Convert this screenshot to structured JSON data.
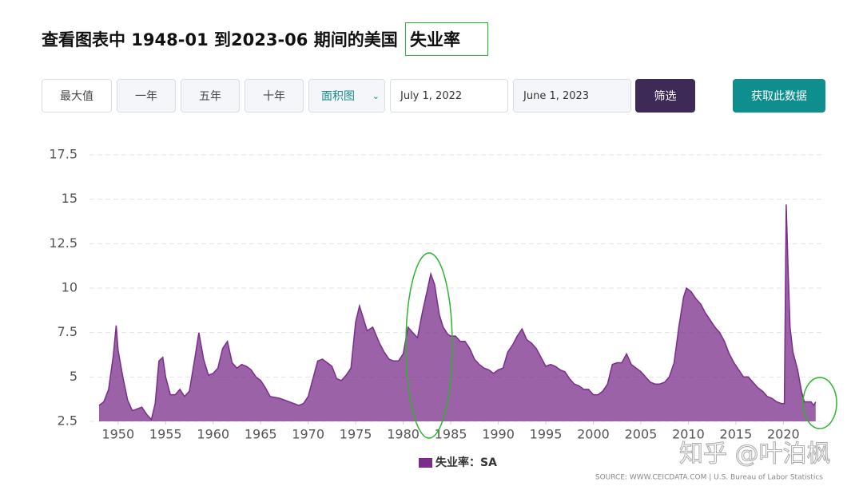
{
  "header": {
    "title_prefix": "查看图表中 1948-01 到2023-06 期间的美国",
    "title_highlight": "失业率"
  },
  "controls": {
    "buttons": [
      "最大值",
      "一年",
      "五年",
      "十年"
    ],
    "chart_type": "面积图",
    "start_date": "July 1, 2022",
    "end_date": "June 1, 2023",
    "filter": "筛选",
    "get_data": "获取此数据"
  },
  "chart_data": {
    "type": "area",
    "x": [
      1948.0,
      1948.5,
      1949.0,
      1949.5,
      1949.8,
      1950.0,
      1950.5,
      1951.0,
      1951.5,
      1952.0,
      1952.5,
      1953.0,
      1953.5,
      1953.9,
      1954.3,
      1954.7,
      1955.0,
      1955.5,
      1956.0,
      1956.5,
      1957.0,
      1957.5,
      1958.0,
      1958.5,
      1959.0,
      1959.5,
      1960.0,
      1960.5,
      1961.0,
      1961.5,
      1962.0,
      1962.5,
      1963.0,
      1963.5,
      1964.0,
      1964.5,
      1965.0,
      1965.5,
      1966.0,
      1967.0,
      1968.0,
      1969.0,
      1969.5,
      1970.0,
      1970.5,
      1971.0,
      1971.5,
      1972.0,
      1972.5,
      1973.0,
      1973.5,
      1974.0,
      1974.5,
      1975.0,
      1975.4,
      1975.8,
      1976.2,
      1976.8,
      1977.5,
      1978.0,
      1978.5,
      1979.0,
      1979.5,
      1980.0,
      1980.5,
      1981.0,
      1981.5,
      1982.0,
      1982.5,
      1982.9,
      1983.3,
      1983.8,
      1984.2,
      1984.7,
      1985.0,
      1985.5,
      1986.0,
      1986.5,
      1987.0,
      1987.5,
      1988.0,
      1988.5,
      1989.0,
      1989.5,
      1990.0,
      1990.5,
      1991.0,
      1991.5,
      1992.0,
      1992.5,
      1993.0,
      1993.5,
      1994.0,
      1994.5,
      1995.0,
      1995.5,
      1996.0,
      1996.5,
      1997.0,
      1997.5,
      1998.0,
      1998.5,
      1999.0,
      1999.5,
      2000.0,
      2000.5,
      2001.0,
      2001.5,
      2002.0,
      2002.5,
      2003.0,
      2003.5,
      2004.0,
      2004.5,
      2005.0,
      2005.5,
      2006.0,
      2006.5,
      2007.0,
      2007.5,
      2008.0,
      2008.5,
      2009.0,
      2009.5,
      2009.8,
      2010.3,
      2010.8,
      2011.3,
      2011.8,
      2012.3,
      2012.8,
      2013.3,
      2013.8,
      2014.3,
      2014.8,
      2015.3,
      2015.8,
      2016.3,
      2016.8,
      2017.3,
      2017.8,
      2018.3,
      2018.8,
      2019.3,
      2019.8,
      2020.1,
      2020.3,
      2020.5,
      2020.7,
      2021.0,
      2021.5,
      2021.9,
      2022.2,
      2022.5,
      2022.9,
      2023.2,
      2023.4
    ],
    "series": [
      {
        "name": "失业率：SA",
        "color": "#7b2d8b",
        "values": [
          3.4,
          3.6,
          4.3,
          6.2,
          7.9,
          6.5,
          5.0,
          3.7,
          3.1,
          3.2,
          3.3,
          2.9,
          2.6,
          3.5,
          5.9,
          6.1,
          5.0,
          4.0,
          4.0,
          4.3,
          3.9,
          4.2,
          5.8,
          7.5,
          6.0,
          5.1,
          5.2,
          5.5,
          6.6,
          7.0,
          5.8,
          5.5,
          5.7,
          5.6,
          5.4,
          5.0,
          4.8,
          4.4,
          3.9,
          3.8,
          3.6,
          3.4,
          3.5,
          3.9,
          4.9,
          5.9,
          6.0,
          5.8,
          5.6,
          4.9,
          4.8,
          5.1,
          5.5,
          8.1,
          9.0,
          8.3,
          7.6,
          7.8,
          6.9,
          6.4,
          6.0,
          5.9,
          5.9,
          6.3,
          7.8,
          7.5,
          7.2,
          8.6,
          9.8,
          10.8,
          10.2,
          8.5,
          7.8,
          7.4,
          7.3,
          7.3,
          7.0,
          7.0,
          6.6,
          6.0,
          5.7,
          5.5,
          5.4,
          5.2,
          5.4,
          5.5,
          6.4,
          6.8,
          7.3,
          7.7,
          7.1,
          6.9,
          6.6,
          6.1,
          5.6,
          5.7,
          5.6,
          5.4,
          5.3,
          4.9,
          4.6,
          4.5,
          4.3,
          4.3,
          4.0,
          4.0,
          4.2,
          4.6,
          5.7,
          5.8,
          5.8,
          6.3,
          5.7,
          5.5,
          5.3,
          5.0,
          4.7,
          4.6,
          4.6,
          4.7,
          5.0,
          5.8,
          7.8,
          9.5,
          10.0,
          9.8,
          9.4,
          9.1,
          8.6,
          8.2,
          7.8,
          7.5,
          7.0,
          6.3,
          5.8,
          5.4,
          5.0,
          5.0,
          4.7,
          4.4,
          4.2,
          3.9,
          3.8,
          3.6,
          3.5,
          3.5,
          14.7,
          11.0,
          7.8,
          6.4,
          5.4,
          4.2,
          3.6,
          3.6,
          3.6,
          3.4,
          3.6
        ]
      }
    ],
    "xlim": [
      1948,
      2023.5
    ],
    "xticks": [
      1950,
      1955,
      1960,
      1965,
      1970,
      1975,
      1980,
      1985,
      1990,
      1995,
      2000,
      2005,
      2010,
      2015,
      2020
    ],
    "ylim": [
      2.5,
      17.5
    ],
    "yticks": [
      2.5,
      5,
      7.5,
      10,
      12.5,
      15,
      17.5
    ],
    "grid": true,
    "legend": "bottom"
  },
  "source": "SOURCE: WWW.CEICDATA.COM | U.S. Bureau of Labor Statistics",
  "watermark": "知乎 @叶泊枫"
}
